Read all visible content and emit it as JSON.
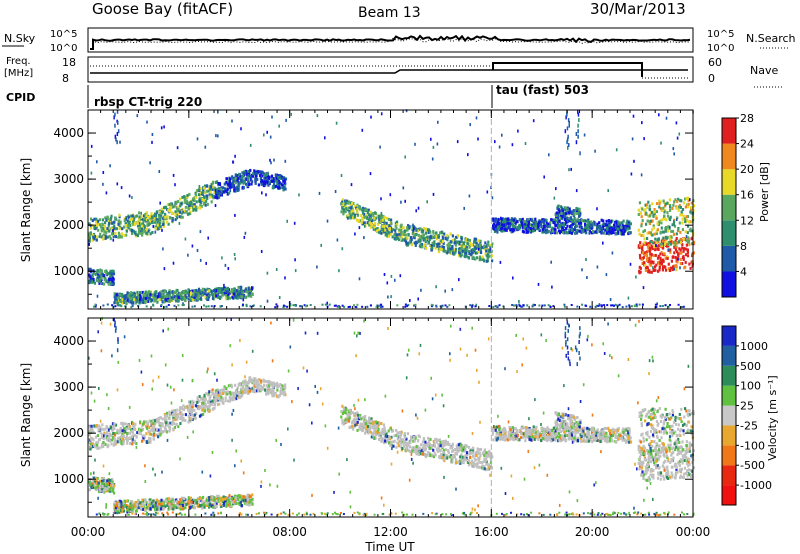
{
  "header": {
    "station": "Goose Bay (fitACF)",
    "beam": "Beam 13",
    "date": "30/Mar/2013"
  },
  "top_panels": {
    "nsky_label": "N.Sky",
    "nsearch_label": "N.Search",
    "noise_ticks": [
      "10^5",
      "10^0"
    ],
    "freq_label_1": "Freq.",
    "freq_label_2": "[MHz]",
    "freq_ticks": [
      "18",
      "8"
    ],
    "nave_label": "Nave",
    "nave_ticks": [
      "60",
      "0"
    ],
    "cpid_label": "CPID",
    "cpid_1": "rbsp CT-trig 220",
    "cpid_2": "tau (fast) 503"
  },
  "chart_data": [
    {
      "type": "heatmap",
      "title": "Power",
      "xlabel": "Time UT",
      "ylabel": "Slant Range [km]",
      "colorbar_label": "Power [dB]",
      "x_ticks": [
        "00:00",
        "04:00",
        "08:00",
        "12:00",
        "16:00",
        "20:00",
        "00:00"
      ],
      "xlim_hours": [
        0,
        24
      ],
      "ylim_km": [
        180,
        4500
      ],
      "y_ticks": [
        "1000",
        "2000",
        "3000",
        "4000"
      ],
      "colorbar_ticks": [
        "4",
        "8",
        "12",
        "16",
        "20",
        "24",
        "28"
      ],
      "colorbar_colors": [
        "#1010e0",
        "#1e5aa8",
        "#2e8e6e",
        "#5aa860",
        "#e8d828",
        "#f08820",
        "#e02020"
      ],
      "vertical_marker_hour": 16
    },
    {
      "type": "heatmap",
      "title": "Velocity",
      "xlabel": "Time UT",
      "ylabel": "Slant Range [km]",
      "colorbar_label": "Velocity [m s⁻¹]",
      "x_ticks": [
        "00:00",
        "04:00",
        "08:00",
        "12:00",
        "16:00",
        "20:00",
        "00:00"
      ],
      "xlim_hours": [
        0,
        24
      ],
      "ylim_km": [
        180,
        4500
      ],
      "y_ticks": [
        "1000",
        "2000",
        "3000",
        "4000"
      ],
      "colorbar_ticks": [
        "1000",
        "500",
        "100",
        "25",
        "-25",
        "-100",
        "-500",
        "-1000"
      ],
      "colorbar_colors": [
        "#1a28c8",
        "#2060a0",
        "#2e8c5a",
        "#60c040",
        "#c8c8c8",
        "#e8a830",
        "#f07818",
        "#e82810",
        "#f01010"
      ],
      "vertical_marker_hour": 16
    }
  ],
  "colors": {
    "ground_scatter": "#c0c0c0"
  }
}
